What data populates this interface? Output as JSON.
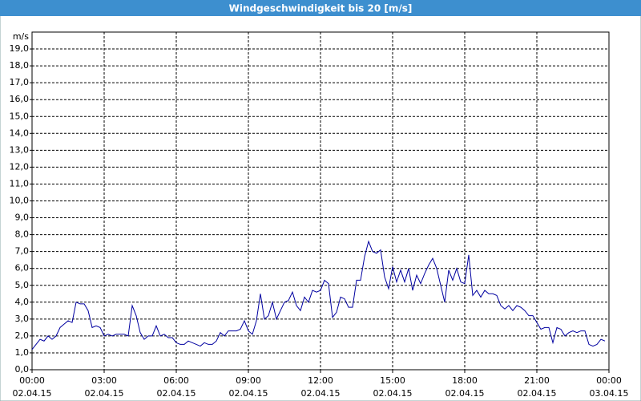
{
  "chart_data": {
    "type": "line",
    "title": "Windgeschwindigkeit bis 20 [m/s]",
    "y_unit": "m/s",
    "x": [
      0,
      10,
      20,
      30,
      40,
      50,
      60,
      70,
      80,
      90,
      100,
      110,
      120,
      130,
      140,
      150,
      160,
      170,
      180,
      190,
      200,
      210,
      220,
      230,
      240,
      250,
      260,
      270,
      280,
      290,
      300,
      310,
      320,
      330,
      340,
      350,
      360,
      370,
      380,
      390,
      400,
      410,
      420,
      430,
      440,
      450,
      460,
      470,
      480,
      490,
      500,
      510,
      520,
      530,
      540,
      550,
      560,
      570,
      580,
      590,
      600,
      610,
      620,
      630,
      640,
      650,
      660,
      670,
      680,
      690,
      700,
      710,
      720,
      730,
      740,
      750,
      760,
      770,
      780,
      790,
      800,
      810,
      820,
      830,
      840,
      850,
      860,
      870,
      880,
      890,
      900,
      910,
      920,
      930,
      940,
      950,
      960,
      970,
      980,
      990,
      1000,
      1010,
      1020,
      1030,
      1040,
      1050,
      1060,
      1070,
      1080,
      1090,
      1100,
      1110,
      1120,
      1130,
      1140,
      1150,
      1160,
      1170,
      1180,
      1190,
      1200,
      1210,
      1220,
      1230,
      1240,
      1250,
      1260,
      1270,
      1280,
      1290,
      1300,
      1310,
      1320,
      1330,
      1340,
      1350,
      1360,
      1370,
      1380,
      1390,
      1400,
      1410,
      1420,
      1430
    ],
    "series": [
      {
        "color": "#0000a0",
        "values": [
          1.2,
          1.5,
          1.8,
          1.7,
          2.0,
          1.8,
          2.0,
          2.5,
          2.7,
          2.9,
          2.8,
          4.0,
          3.9,
          3.9,
          3.5,
          2.5,
          2.6,
          2.5,
          2.0,
          2.1,
          2.0,
          2.1,
          2.1,
          2.1,
          2.0,
          3.8,
          3.2,
          2.2,
          1.8,
          2.0,
          2.0,
          2.6,
          2.0,
          2.1,
          1.9,
          1.9,
          1.6,
          1.5,
          1.5,
          1.7,
          1.6,
          1.5,
          1.4,
          1.6,
          1.5,
          1.5,
          1.7,
          2.2,
          2.0,
          2.3,
          2.3,
          2.3,
          2.4,
          2.9,
          2.3,
          2.1,
          2.9,
          4.5,
          3.0,
          3.2,
          4.0,
          3.0,
          3.5,
          4.0,
          4.1,
          4.6,
          3.8,
          3.5,
          4.3,
          4.0,
          4.7,
          4.6,
          4.7,
          5.3,
          5.1,
          3.1,
          3.4,
          4.3,
          4.2,
          3.7,
          3.7,
          5.3,
          5.3,
          6.7,
          7.6,
          7.0,
          6.9,
          7.1,
          5.5,
          4.8,
          6.1,
          5.2,
          5.9,
          5.2,
          6.0,
          4.7,
          5.6,
          5.1,
          5.7,
          6.2,
          6.6,
          6.0,
          5.0,
          4.0,
          5.9,
          5.3,
          6.0,
          5.2,
          5.1,
          6.8,
          4.4,
          4.7,
          4.3,
          4.7,
          4.5,
          4.5,
          4.4,
          3.8,
          3.6,
          3.8,
          3.5,
          3.8,
          3.7,
          3.5,
          3.2,
          3.2,
          2.8,
          2.4,
          2.5,
          2.5,
          1.6,
          2.5,
          2.4,
          2.0,
          2.2,
          2.3,
          2.2,
          2.3,
          2.3,
          1.5,
          1.4,
          1.5,
          1.8,
          1.7
        ]
      }
    ],
    "xlim": [
      0,
      1440
    ],
    "xticks": [
      {
        "value": 0,
        "label": "00:00",
        "date": "02.04.15"
      },
      {
        "value": 180,
        "label": "03:00",
        "date": "02.04.15"
      },
      {
        "value": 360,
        "label": "06:00",
        "date": "02.04.15"
      },
      {
        "value": 540,
        "label": "09:00",
        "date": "02.04.15"
      },
      {
        "value": 720,
        "label": "12:00",
        "date": "02.04.15"
      },
      {
        "value": 900,
        "label": "15:00",
        "date": "02.04.15"
      },
      {
        "value": 1080,
        "label": "18:00",
        "date": "02.04.15"
      },
      {
        "value": 1260,
        "label": "21:00",
        "date": "02.04.15"
      },
      {
        "value": 1440,
        "label": "00:00",
        "date": "03.04.15"
      }
    ],
    "ylim": [
      0,
      20
    ],
    "yticks": [
      {
        "value": 0,
        "label": "0,0"
      },
      {
        "value": 1,
        "label": "1,0"
      },
      {
        "value": 2,
        "label": "2,0"
      },
      {
        "value": 3,
        "label": "3,0"
      },
      {
        "value": 4,
        "label": "4,0"
      },
      {
        "value": 5,
        "label": "5,0"
      },
      {
        "value": 6,
        "label": "6,0"
      },
      {
        "value": 7,
        "label": "7,0"
      },
      {
        "value": 8,
        "label": "8,0"
      },
      {
        "value": 9,
        "label": "9,0"
      },
      {
        "value": 10,
        "label": "10,0"
      },
      {
        "value": 11,
        "label": "11,0"
      },
      {
        "value": 12,
        "label": "12,0"
      },
      {
        "value": 13,
        "label": "13,0"
      },
      {
        "value": 14,
        "label": "14,0"
      },
      {
        "value": 15,
        "label": "15,0"
      },
      {
        "value": 16,
        "label": "16,0"
      },
      {
        "value": 17,
        "label": "17,0"
      },
      {
        "value": 18,
        "label": "18,0"
      },
      {
        "value": 19,
        "label": "19,0"
      }
    ],
    "grid": true
  }
}
